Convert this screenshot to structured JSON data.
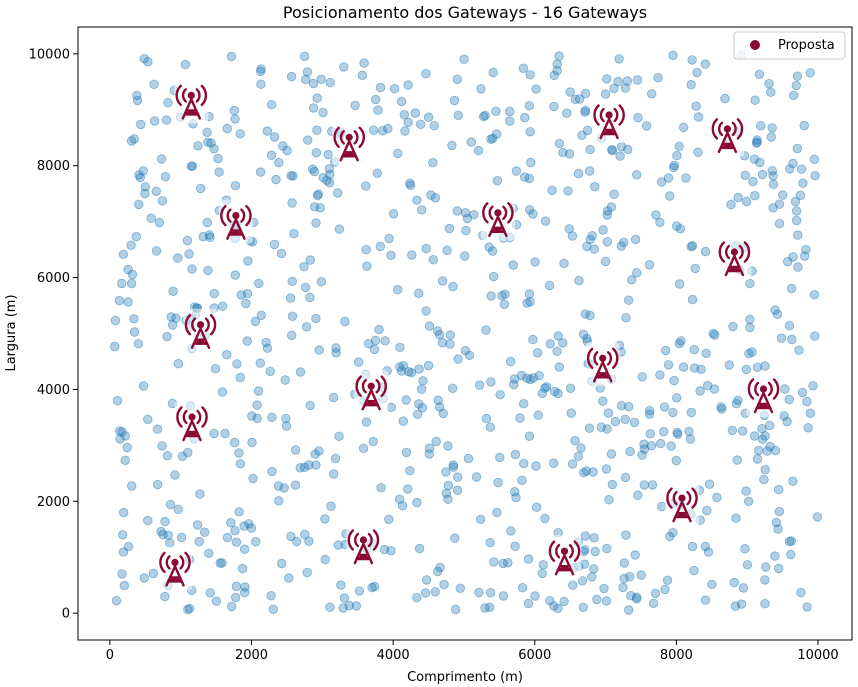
{
  "chart_data": {
    "type": "scatter",
    "title": "Posicionamento dos Gateways - 16 Gateways",
    "xlabel": "Comprimento (m)",
    "ylabel": "Largura (m)",
    "xlim": [
      -450,
      10480
    ],
    "ylim": [
      -480,
      10480
    ],
    "x_ticks": [
      0,
      2000,
      4000,
      6000,
      8000,
      10000
    ],
    "y_ticks": [
      0,
      2000,
      4000,
      6000,
      8000,
      10000
    ],
    "x_tick_labels": [
      "0",
      "2000",
      "4000",
      "6000",
      "8000",
      "10000"
    ],
    "y_tick_labels": [
      "0",
      "2000",
      "4000",
      "6000",
      "8000",
      "10000"
    ],
    "grid": false,
    "legend_position": "top-right",
    "colors": {
      "devices": "#1f77b4",
      "gateway": "#8b0a33",
      "legend_marker": "#8b0a33"
    },
    "legend": [
      {
        "label": "Proposta",
        "marker": "circle"
      }
    ],
    "devices": {
      "count": 900,
      "x_range": [
        50,
        10000
      ],
      "y_range": [
        50,
        10000
      ],
      "distribution": "uniform"
    },
    "gateways": {
      "icon": "radio-tower-icon",
      "points": [
        {
          "x": 1150,
          "y": 9150
        },
        {
          "x": 3380,
          "y": 8400
        },
        {
          "x": 5480,
          "y": 7050
        },
        {
          "x": 7050,
          "y": 8800
        },
        {
          "x": 8720,
          "y": 8550
        },
        {
          "x": 1780,
          "y": 7000
        },
        {
          "x": 8820,
          "y": 6350
        },
        {
          "x": 1280,
          "y": 5050
        },
        {
          "x": 6960,
          "y": 4450
        },
        {
          "x": 3690,
          "y": 3950
        },
        {
          "x": 9230,
          "y": 3900
        },
        {
          "x": 1160,
          "y": 3400
        },
        {
          "x": 8080,
          "y": 1950
        },
        {
          "x": 3580,
          "y": 1200
        },
        {
          "x": 6420,
          "y": 1000
        },
        {
          "x": 920,
          "y": 800
        }
      ]
    }
  }
}
